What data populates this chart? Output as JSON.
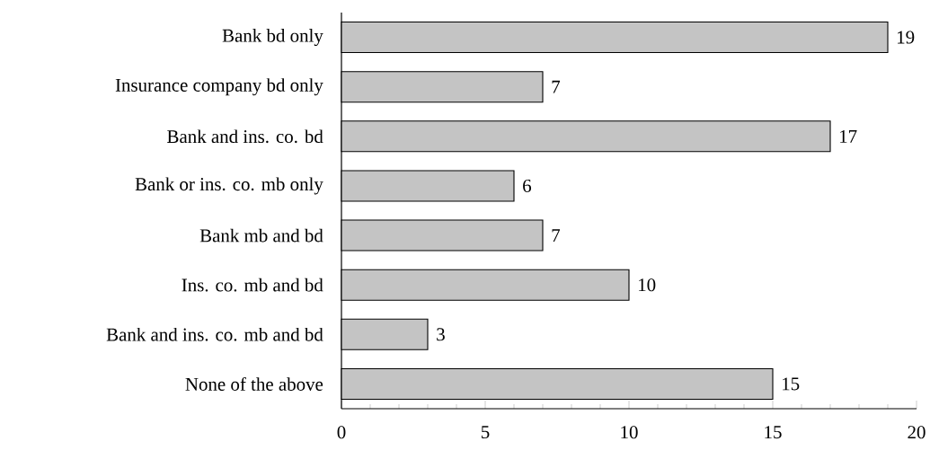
{
  "chart_data": {
    "type": "bar",
    "orientation": "horizontal",
    "categories": [
      "Bank bd only",
      "Insurance company bd only",
      "Bank and  ins. co.  bd",
      "Bank or ins. co. mb only",
      "Bank mb and bd",
      "Ins. co. mb and bd",
      "Bank and ins. co. mb and bd",
      "None of the above"
    ],
    "values": [
      19,
      7,
      17,
      6,
      7,
      10,
      3,
      15
    ],
    "color": "#c4c4c4",
    "xlim": [
      0,
      20
    ],
    "xticks": [
      0,
      5,
      10,
      15,
      20
    ],
    "data_labels": true
  }
}
